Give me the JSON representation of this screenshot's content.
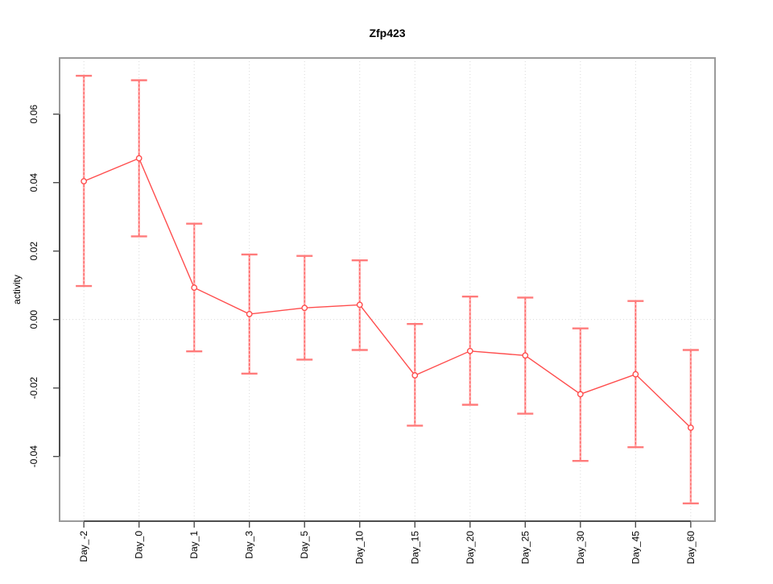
{
  "chart_data": {
    "type": "line",
    "title": "Zfp423",
    "ylabel": "activity",
    "xlabel": "",
    "categories": [
      "Day_-2",
      "Day_0",
      "Day_1",
      "Day_3",
      "Day_5",
      "Day_10",
      "Day_15",
      "Day_20",
      "Day_25",
      "Day_30",
      "Day_45",
      "Day_60"
    ],
    "series": [
      {
        "name": "activity-mean-with-error-bars",
        "values": [
          0.0404,
          0.0471,
          0.0093,
          0.0016,
          0.0034,
          0.0043,
          -0.0163,
          -0.0092,
          -0.0105,
          -0.0218,
          -0.016,
          -0.0316
        ],
        "upper": [
          0.0712,
          0.0699,
          0.028,
          0.019,
          0.0186,
          0.0173,
          -0.0013,
          0.0067,
          0.0064,
          -0.0026,
          0.0054,
          -0.0089
        ],
        "lower": [
          0.0098,
          0.0243,
          -0.0093,
          -0.0158,
          -0.0117,
          -0.0089,
          -0.031,
          -0.0249,
          -0.0275,
          -0.0413,
          -0.0373,
          -0.0537
        ]
      }
    ],
    "ylim": [
      -0.0589,
      0.0764
    ],
    "xlim": [
      0.56,
      12.44
    ],
    "yticks": [
      -0.04,
      -0.02,
      0,
      0.02,
      0.04,
      0.06
    ],
    "ytick_labels": [
      "-0.04",
      "-0.02",
      "0.00",
      "0.02",
      "0.04",
      "0.06"
    ],
    "grid": {
      "vertical": "dotted line at every category",
      "horizontal": "dotted line at y=0"
    },
    "legend": "none",
    "marker": "open-circle",
    "colors": {
      "series": "#ff4d4d",
      "error_bar": "#ffb0b0",
      "error_bar_dash": "#ff5252",
      "error_cap": "#ff7b7b",
      "grid": "#d9d9d9",
      "box": "#9a9a9a",
      "axis": "#4d4d4d",
      "text": "#000000",
      "background": "#ffffff"
    }
  }
}
